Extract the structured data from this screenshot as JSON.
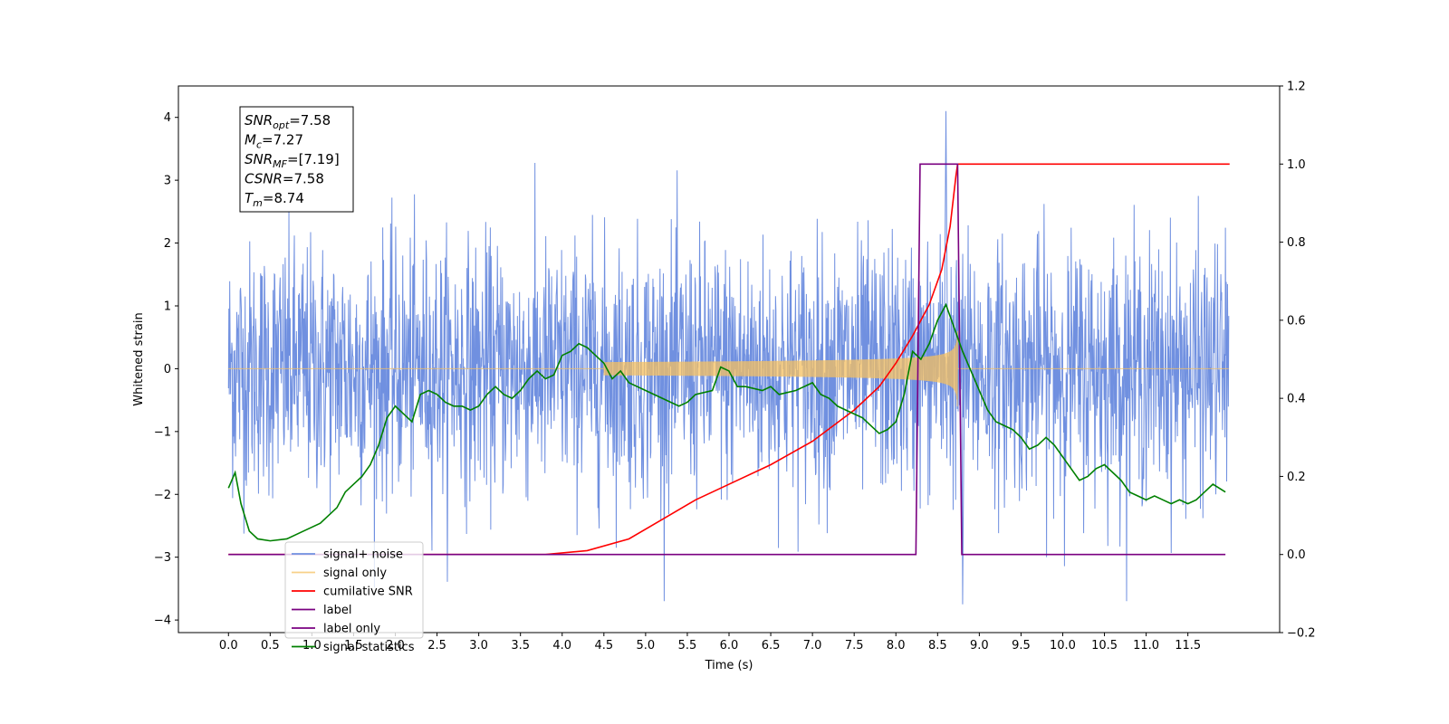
{
  "chart_data": {
    "type": "line",
    "xlabel": "Time (s)",
    "ylabel": "Whitened strain",
    "xlim": [
      -0.6,
      12.6
    ],
    "ylim": [
      -4.2,
      4.5
    ],
    "ylim_right": [
      -0.2,
      1.2
    ],
    "x_ticks": [
      0.0,
      0.5,
      1.0,
      1.5,
      2.0,
      2.5,
      3.0,
      3.5,
      4.0,
      4.5,
      5.0,
      5.5,
      6.0,
      6.5,
      7.0,
      7.5,
      8.0,
      8.5,
      9.0,
      9.5,
      10.0,
      10.5,
      11.0,
      11.5
    ],
    "x_tick_labels": [
      "0.0",
      "0.5",
      "1.0",
      "1.5",
      "2.0",
      "2.5",
      "3.0",
      "3.5",
      "4.0",
      "4.5",
      "5.0",
      "5.5",
      "6.0",
      "6.5",
      "7.0",
      "7.5",
      "8.0",
      "8.5",
      "9.0",
      "9.5",
      "10.0",
      "10.5",
      "11.0",
      "11.5"
    ],
    "y_ticks": [
      -4,
      -3,
      -2,
      -1,
      0,
      1,
      2,
      3,
      4
    ],
    "y_tick_labels": [
      "−4",
      "−3",
      "−2",
      "−1",
      "0",
      "1",
      "2",
      "3",
      "4"
    ],
    "y_right_ticks": [
      -0.2,
      0.0,
      0.2,
      0.4,
      0.6,
      0.8,
      1.0,
      1.2
    ],
    "y_right_tick_labels": [
      "−0.2",
      "0.0",
      "0.2",
      "0.4",
      "0.6",
      "0.8",
      "1.0",
      "1.2"
    ],
    "legend_position": "lower-left",
    "grid": false,
    "info_box": [
      {
        "base": "SNR",
        "sub": "opt",
        "value": "=7.58"
      },
      {
        "base": "M",
        "sub": "c",
        "value": "=7.27"
      },
      {
        "base": "SNR",
        "sub": "MF",
        "value": "=[7.19]"
      },
      {
        "base": "CSNR",
        "sub": "",
        "value": "=7.58"
      },
      {
        "base": "T",
        "sub": "m",
        "value": "=8.74"
      }
    ],
    "series": [
      {
        "name": "signal+ noise",
        "axis": "left",
        "color": "#7090e0",
        "sampling": {
          "t_start": 0.0,
          "t_end": 11.99,
          "points": 2400
        },
        "envelope_typical": [
          -2.0,
          2.2
        ],
        "extremes": {
          "max": 4.1,
          "min": -3.75
        }
      },
      {
        "name": "signal only",
        "axis": "left",
        "color": "#f5c060",
        "chirp": {
          "t_start": 4.5,
          "t_merger": 8.74,
          "amplitude_at_merger": 0.6
        }
      },
      {
        "name": "cumilative SNR",
        "axis": "right",
        "color": "#ff0000",
        "x": [
          0.0,
          3.8,
          4.3,
          4.8,
          5.2,
          5.6,
          6.0,
          6.5,
          7.0,
          7.5,
          7.8,
          8.0,
          8.2,
          8.4,
          8.55,
          8.65,
          8.72,
          8.74,
          12.0
        ],
        "values": [
          0.0,
          0.0,
          0.01,
          0.04,
          0.09,
          0.14,
          0.18,
          0.23,
          0.29,
          0.37,
          0.43,
          0.49,
          0.56,
          0.64,
          0.73,
          0.84,
          0.97,
          1.0,
          1.0
        ]
      },
      {
        "name": "label",
        "axis": "right",
        "color": "#7a0080",
        "x": [
          0.0,
          8.24,
          8.29,
          8.74,
          8.79,
          11.95
        ],
        "values": [
          0.0,
          0.0,
          1.0,
          1.0,
          0.0,
          0.0
        ]
      },
      {
        "name": "label only",
        "axis": "right",
        "color": "#7a0080",
        "hidden_line": true
      },
      {
        "name": "signal statistics",
        "axis": "right",
        "color": "#008000",
        "x": [
          0.0,
          0.08,
          0.15,
          0.25,
          0.35,
          0.5,
          0.7,
          0.9,
          1.1,
          1.3,
          1.4,
          1.5,
          1.6,
          1.7,
          1.8,
          1.9,
          2.0,
          2.1,
          2.2,
          2.3,
          2.4,
          2.5,
          2.6,
          2.7,
          2.8,
          2.9,
          3.0,
          3.1,
          3.2,
          3.3,
          3.4,
          3.5,
          3.6,
          3.7,
          3.8,
          3.9,
          4.0,
          4.1,
          4.2,
          4.3,
          4.4,
          4.5,
          4.6,
          4.7,
          4.8,
          4.9,
          5.0,
          5.2,
          5.4,
          5.5,
          5.6,
          5.8,
          5.9,
          6.0,
          6.1,
          6.2,
          6.4,
          6.5,
          6.6,
          6.8,
          6.9,
          7.0,
          7.1,
          7.2,
          7.3,
          7.4,
          7.5,
          7.6,
          7.7,
          7.8,
          7.9,
          8.0,
          8.1,
          8.2,
          8.3,
          8.4,
          8.5,
          8.6,
          8.7,
          8.8,
          8.9,
          9.0,
          9.1,
          9.2,
          9.3,
          9.4,
          9.5,
          9.6,
          9.7,
          9.8,
          9.9,
          10.0,
          10.1,
          10.2,
          10.3,
          10.4,
          10.5,
          10.6,
          10.7,
          10.8,
          10.9,
          11.0,
          11.1,
          11.2,
          11.3,
          11.4,
          11.5,
          11.6,
          11.7,
          11.8,
          11.95
        ],
        "values": [
          0.17,
          0.21,
          0.13,
          0.06,
          0.04,
          0.035,
          0.04,
          0.06,
          0.08,
          0.12,
          0.16,
          0.18,
          0.2,
          0.23,
          0.28,
          0.35,
          0.38,
          0.36,
          0.34,
          0.41,
          0.42,
          0.41,
          0.39,
          0.38,
          0.38,
          0.37,
          0.38,
          0.41,
          0.43,
          0.41,
          0.4,
          0.42,
          0.45,
          0.47,
          0.45,
          0.46,
          0.51,
          0.52,
          0.54,
          0.53,
          0.51,
          0.49,
          0.45,
          0.47,
          0.44,
          0.43,
          0.42,
          0.4,
          0.38,
          0.39,
          0.41,
          0.42,
          0.48,
          0.47,
          0.43,
          0.43,
          0.42,
          0.43,
          0.41,
          0.42,
          0.43,
          0.44,
          0.41,
          0.4,
          0.38,
          0.37,
          0.36,
          0.35,
          0.33,
          0.31,
          0.32,
          0.34,
          0.41,
          0.52,
          0.5,
          0.54,
          0.6,
          0.64,
          0.58,
          0.52,
          0.47,
          0.42,
          0.37,
          0.34,
          0.33,
          0.32,
          0.3,
          0.27,
          0.28,
          0.3,
          0.28,
          0.25,
          0.22,
          0.19,
          0.2,
          0.22,
          0.23,
          0.21,
          0.19,
          0.16,
          0.15,
          0.14,
          0.15,
          0.14,
          0.13,
          0.14,
          0.13,
          0.14,
          0.16,
          0.18,
          0.16
        ]
      }
    ]
  }
}
